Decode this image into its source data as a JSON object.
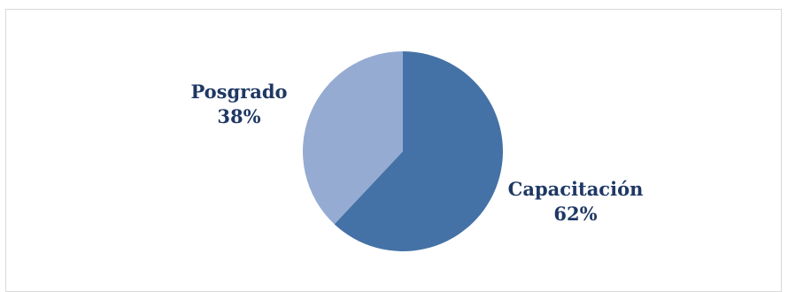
{
  "chart_data": {
    "type": "pie",
    "slices": [
      {
        "label": "Capacitación",
        "value": 62,
        "display": "62%",
        "color": "#4472a6"
      },
      {
        "label": "Posgrado",
        "value": 38,
        "display": "38%",
        "color": "#95abd2"
      }
    ],
    "start_angle_deg": 0,
    "direction": "clockwise",
    "label_color": "#1f3864",
    "legend": "none"
  }
}
